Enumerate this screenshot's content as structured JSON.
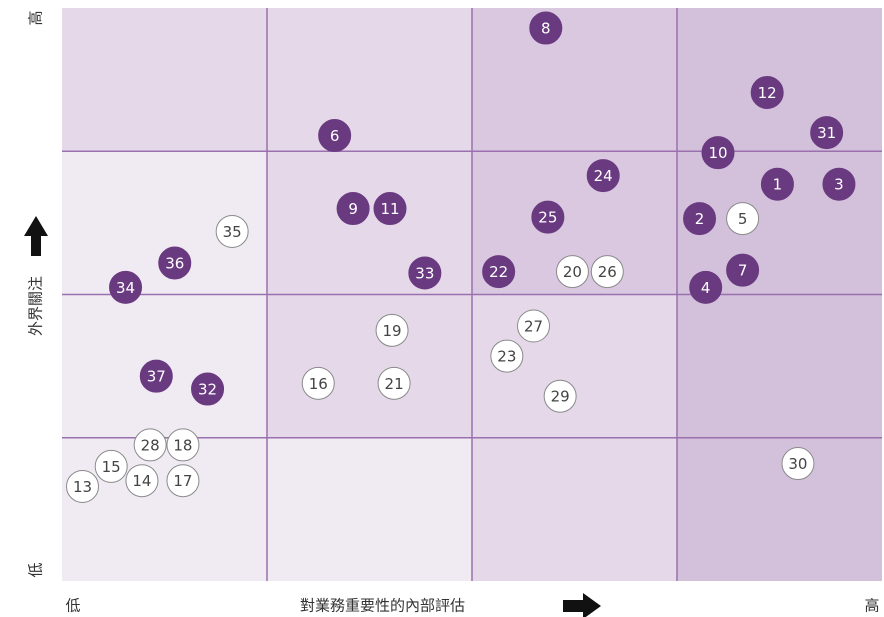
{
  "chart_data": {
    "type": "scatter",
    "x_label": "對業務重要性的內部評估",
    "y_label": "外界關注",
    "x_low_label": "低",
    "x_high_label": "高",
    "y_low_label": "低",
    "y_high_label": "高",
    "xlim": [
      0,
      4
    ],
    "ylim": [
      0,
      4
    ],
    "xticks": [
      1,
      2,
      3
    ],
    "yticks": [
      1,
      2,
      3
    ],
    "grid": true,
    "grid_color": "#9a70ae",
    "zone_colors": [
      [
        "#e4d8e9",
        "#e4d8e9",
        "#d9c8e0",
        "#d3c1dc"
      ],
      [
        "#f0eaf3",
        "#e4d8e9",
        "#d9c8e0",
        "#d3c1dc"
      ],
      [
        "#f0eaf3",
        "#e4d8e9",
        "#e4d8e9",
        "#d3c1dc"
      ],
      [
        "#f0eaf3",
        "#f0eaf3",
        "#e4d8e9",
        "#d3c1dc"
      ]
    ],
    "series": [
      {
        "color": "#6a3a80",
        "stroke": "#6a3a80",
        "text_color": "#ffffff",
        "labels": [
          "8",
          "12",
          "6",
          "31",
          "10",
          "24",
          "1",
          "3",
          "9",
          "11",
          "25",
          "2",
          "36",
          "7",
          "33",
          "22",
          "4",
          "34",
          "37",
          "32"
        ],
        "x": [
          2.36,
          3.44,
          1.33,
          3.73,
          3.2,
          2.64,
          3.49,
          3.79,
          1.42,
          1.6,
          2.37,
          3.11,
          0.55,
          3.32,
          1.77,
          2.13,
          3.14,
          0.31,
          0.46,
          0.71
        ],
        "y": [
          3.86,
          3.41,
          3.11,
          3.13,
          2.99,
          2.83,
          2.77,
          2.77,
          2.6,
          2.6,
          2.54,
          2.53,
          2.22,
          2.17,
          2.15,
          2.16,
          2.05,
          2.05,
          1.43,
          1.34
        ]
      },
      {
        "color": "#ffffff",
        "stroke": "#8a8a8a",
        "text_color": "#444444",
        "labels": [
          "5",
          "35",
          "20",
          "26",
          "19",
          "27",
          "23",
          "16",
          "21",
          "29",
          "28",
          "18",
          "15",
          "14",
          "17",
          "13",
          "30"
        ],
        "x": [
          3.32,
          0.83,
          2.49,
          2.66,
          1.61,
          2.3,
          2.17,
          1.25,
          1.62,
          2.43,
          0.43,
          0.59,
          0.24,
          0.39,
          0.59,
          0.1,
          3.59
        ],
        "y": [
          2.53,
          2.44,
          2.16,
          2.16,
          1.75,
          1.78,
          1.57,
          1.38,
          1.38,
          1.29,
          0.95,
          0.95,
          0.8,
          0.7,
          0.7,
          0.66,
          0.82
        ]
      }
    ]
  }
}
